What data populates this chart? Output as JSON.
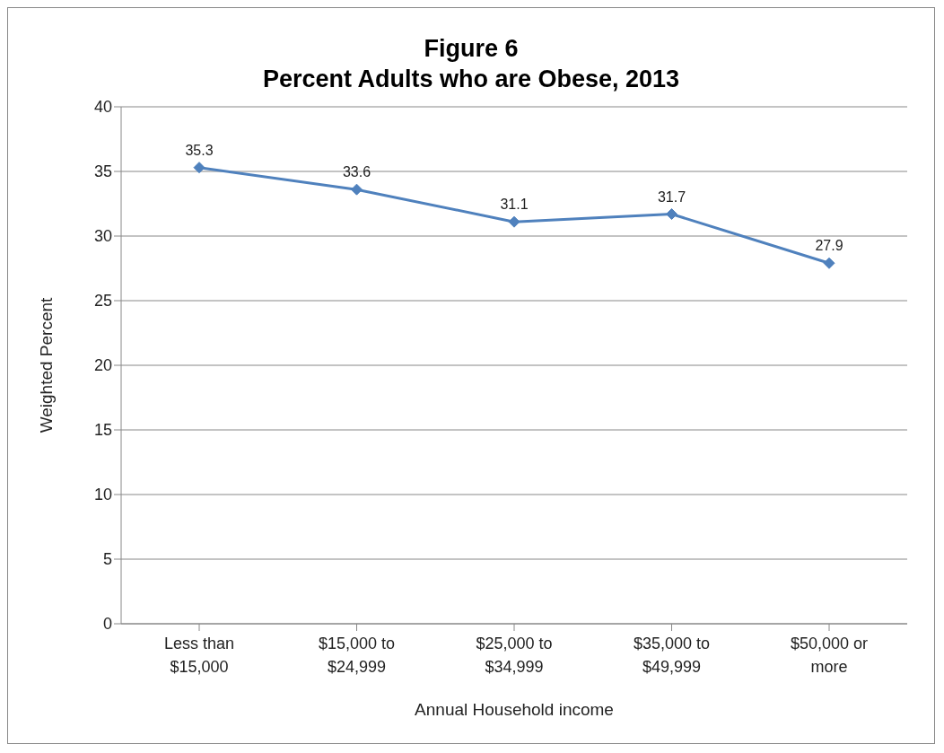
{
  "chart_data": {
    "type": "line",
    "title": "Figure 6",
    "subtitle": "Percent Adults who are Obese, 2013",
    "xlabel": "Annual Household income",
    "ylabel": "Weighted Percent",
    "categories": [
      "Less than $15,000",
      "$15,000 to $24,999",
      "$25,000 to $34,999",
      "$35,000 to $49,999",
      "$50,000 or more"
    ],
    "series": [
      {
        "color": "#4f81bd",
        "values": [
          35.3,
          33.6,
          31.1,
          31.7,
          27.9
        ]
      }
    ],
    "ylim": [
      0,
      40
    ],
    "yticks": [
      0,
      5,
      10,
      15,
      20,
      25,
      30,
      35,
      40
    ],
    "grid": "y",
    "marker": "diamond",
    "line_style": "solid",
    "data_labels": true
  }
}
